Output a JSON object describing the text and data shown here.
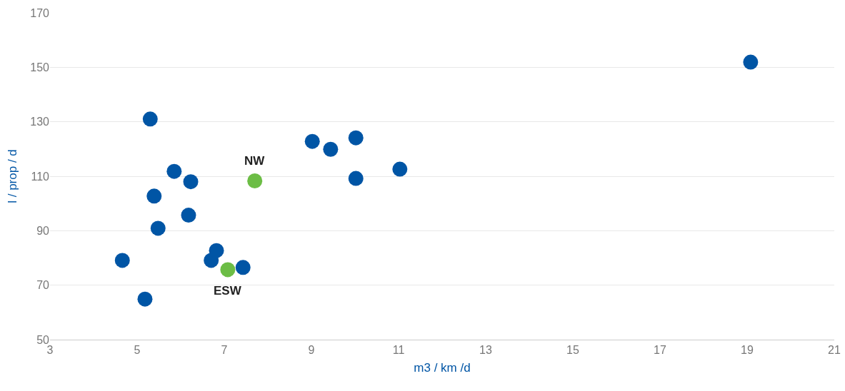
{
  "chart_data": {
    "type": "scatter",
    "xlabel": "m3 / km /d",
    "ylabel": "l / prop / d",
    "series": [
      {
        "color": "#0055a5",
        "x": [
          4.66,
          5.18,
          5.3,
          5.39,
          5.48,
          5.85,
          6.18,
          6.23,
          6.7,
          6.82,
          7.43,
          9.02,
          9.44,
          10.02,
          10.02,
          11.03,
          19.08
        ],
        "values": [
          79.1,
          64.9,
          131,
          102.7,
          90.9,
          111.8,
          95.7,
          108,
          79.1,
          82.7,
          76.5,
          122.8,
          119.9,
          124.1,
          109.2,
          112.6,
          151.9
        ]
      },
      {
        "color": "#6cbd45",
        "x": [
          7.7,
          7.08
        ],
        "values": [
          108.3,
          75.7
        ]
      }
    ],
    "annotations": [
      {
        "text": "NW",
        "x": 7.7,
        "y": 108.3
      },
      {
        "text": "ESW",
        "x": 7.08,
        "y": 75.7
      }
    ],
    "xlim": [
      3,
      21
    ],
    "xticks": [
      3,
      5,
      7,
      9,
      11,
      13,
      15,
      17,
      19,
      21
    ],
    "ylim": [
      50,
      170
    ],
    "yticks": [
      50,
      70,
      90,
      110,
      130,
      150,
      170
    ],
    "grid": "y",
    "marker": "circle"
  }
}
